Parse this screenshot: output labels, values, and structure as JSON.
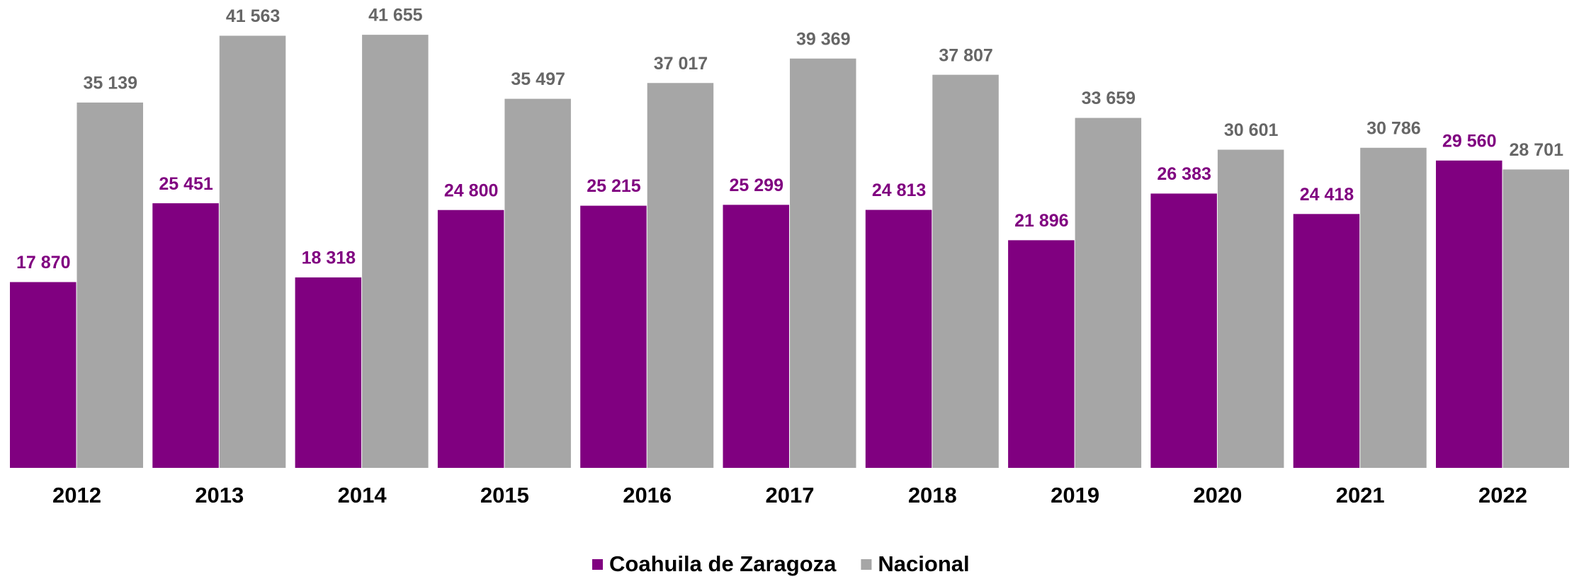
{
  "chart_data": {
    "type": "bar",
    "categories": [
      "2012",
      "2013",
      "2014",
      "2015",
      "2016",
      "2017",
      "2018",
      "2019",
      "2020",
      "2021",
      "2022"
    ],
    "series": [
      {
        "name": "Coahuila de Zaragoza",
        "color": "#800080",
        "values": [
          17870,
          25451,
          18318,
          24800,
          25215,
          25299,
          24813,
          21896,
          26383,
          24418,
          29560
        ],
        "value_labels": [
          "17 870",
          "25 451",
          "18 318",
          "24 800",
          "25 215",
          "25 299",
          "24 813",
          "21 896",
          "26 383",
          "24 418",
          "29 560"
        ]
      },
      {
        "name": "Nacional",
        "color": "#a6a6a6",
        "values": [
          35139,
          41563,
          41655,
          35497,
          37017,
          39369,
          37807,
          33659,
          30601,
          30786,
          28701
        ],
        "value_labels": [
          "35 139",
          "41 563",
          "41 655",
          "35 497",
          "37 017",
          "39 369",
          "37 807",
          "33 659",
          "30 601",
          "30 786",
          "28 701"
        ]
      }
    ],
    "ylim": [
      0,
      45000
    ],
    "grid": false,
    "legend": "bottom"
  }
}
